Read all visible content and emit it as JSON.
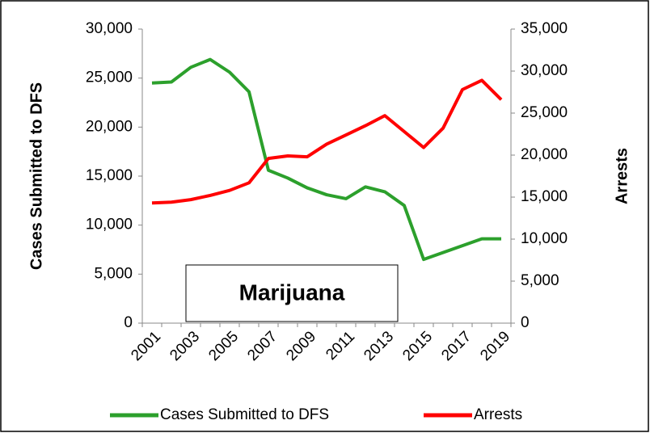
{
  "chart_data": {
    "type": "line",
    "y_label": "Cases Submitted to DFS",
    "y2_label": "Arrests",
    "annotation": "Marijuana",
    "categories": [
      "2001",
      "2002",
      "2003",
      "2004",
      "2005",
      "2006",
      "2007",
      "2008",
      "2009",
      "2010",
      "2011",
      "2012",
      "2013",
      "2014",
      "2015",
      "2016",
      "2017",
      "2018",
      "2019"
    ],
    "x_labels": [
      "2001",
      null,
      "2003",
      null,
      "2005",
      null,
      "2007",
      null,
      "2009",
      null,
      "2011",
      null,
      "2013",
      null,
      "2015",
      null,
      "2017",
      null,
      "2019"
    ],
    "series": [
      {
        "name": "Cases Submitted to DFS",
        "color": "#2ca02c",
        "axis": "y",
        "values": [
          24500,
          24600,
          26100,
          26900,
          25600,
          23600,
          15600,
          14800,
          13800,
          13100,
          12700,
          13900,
          13400,
          12000,
          6500,
          7200,
          7900,
          8600,
          8600
        ]
      },
      {
        "name": "Arrests",
        "color": "#ff0000",
        "axis": "y2",
        "values": [
          14300,
          14400,
          14700,
          15200,
          15800,
          16700,
          19600,
          19900,
          19800,
          21300,
          22400,
          23500,
          24700,
          22800,
          20900,
          23200,
          27800,
          28900,
          26600
        ]
      }
    ],
    "ylim": [
      0,
      30000
    ],
    "yticks": [
      0,
      {
        "value": 5000,
        "label": "5,000"
      },
      {
        "value": 10000,
        "label": "10,000"
      },
      {
        "value": 15000,
        "label": "15,000"
      },
      {
        "value": 20000,
        "label": "20,000"
      },
      {
        "value": 25000,
        "label": "25,000"
      },
      {
        "value": 30000,
        "label": "30,000"
      }
    ],
    "y2lim": [
      0,
      35000
    ],
    "y2ticks": [
      0,
      {
        "value": 5000,
        "label": "5,000"
      },
      {
        "value": 10000,
        "label": "10,000"
      },
      {
        "value": 15000,
        "label": "15,000"
      },
      {
        "value": 20000,
        "label": "20,000"
      },
      {
        "value": 25000,
        "label": "25,000"
      },
      {
        "value": 30000,
        "label": "30,000"
      },
      {
        "value": 35000,
        "label": "35,000"
      }
    ],
    "grid": false
  }
}
